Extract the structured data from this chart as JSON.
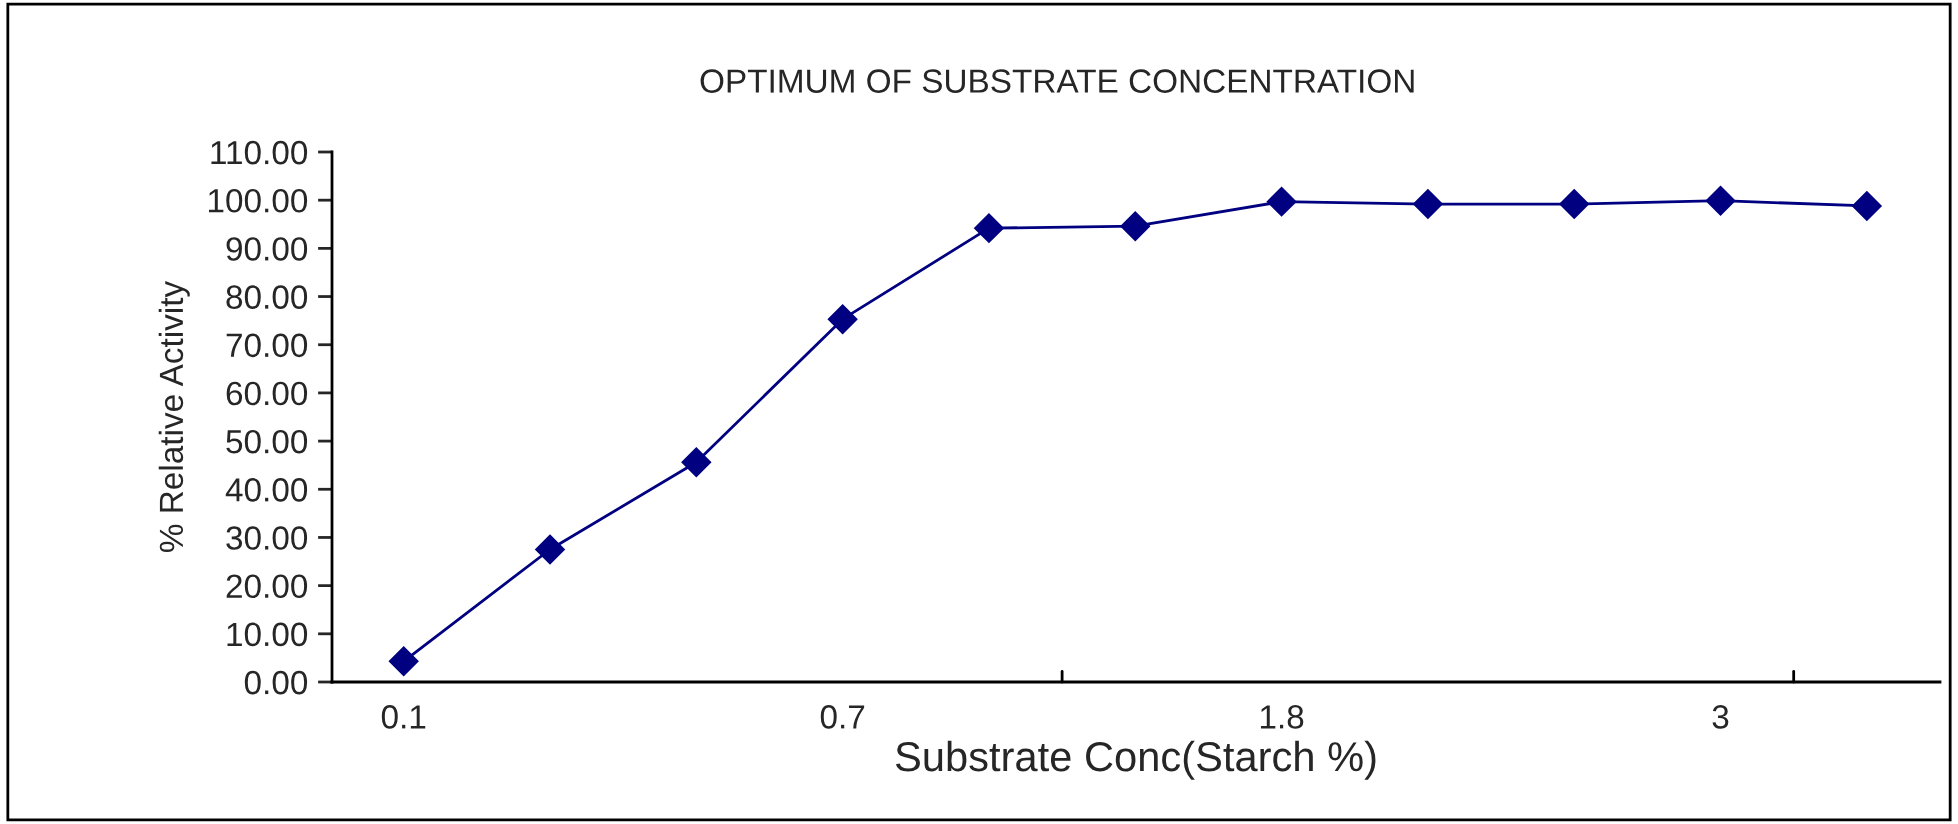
{
  "chart_data": {
    "type": "line",
    "title": "OPTIMUM OF SUBSTRATE CONCENTRATION",
    "xlabel": "Substrate Conc(Starch %)",
    "ylabel": "% Relative Activity",
    "categories": [
      "0.1",
      null,
      null,
      "0.7",
      null,
      null,
      "1.8",
      null,
      null,
      "3",
      null
    ],
    "series": [
      {
        "color": "#000080",
        "values": [
          4.3,
          27.5,
          45.6,
          75.3,
          94.2,
          94.6,
          99.7,
          99.2,
          99.2,
          99.9,
          98.8
        ]
      }
    ],
    "ylim": [
      0,
      110
    ],
    "yticks": [
      {
        "value": 0,
        "label": "0.00"
      },
      {
        "value": 10,
        "label": "10.00"
      },
      {
        "value": 20,
        "label": "20.00"
      },
      {
        "value": 30,
        "label": "30.00"
      },
      {
        "value": 40,
        "label": "40.00"
      },
      {
        "value": 50,
        "label": "50.00"
      },
      {
        "value": 60,
        "label": "60.00"
      },
      {
        "value": 70,
        "label": "70.00"
      },
      {
        "value": 80,
        "label": "80.00"
      },
      {
        "value": 90,
        "label": "90.00"
      },
      {
        "value": 100,
        "label": "100.00"
      },
      {
        "value": 110,
        "label": "110.00"
      }
    ],
    "marker": "diamond",
    "line_style": "solid",
    "grid": false,
    "legend": false
  }
}
